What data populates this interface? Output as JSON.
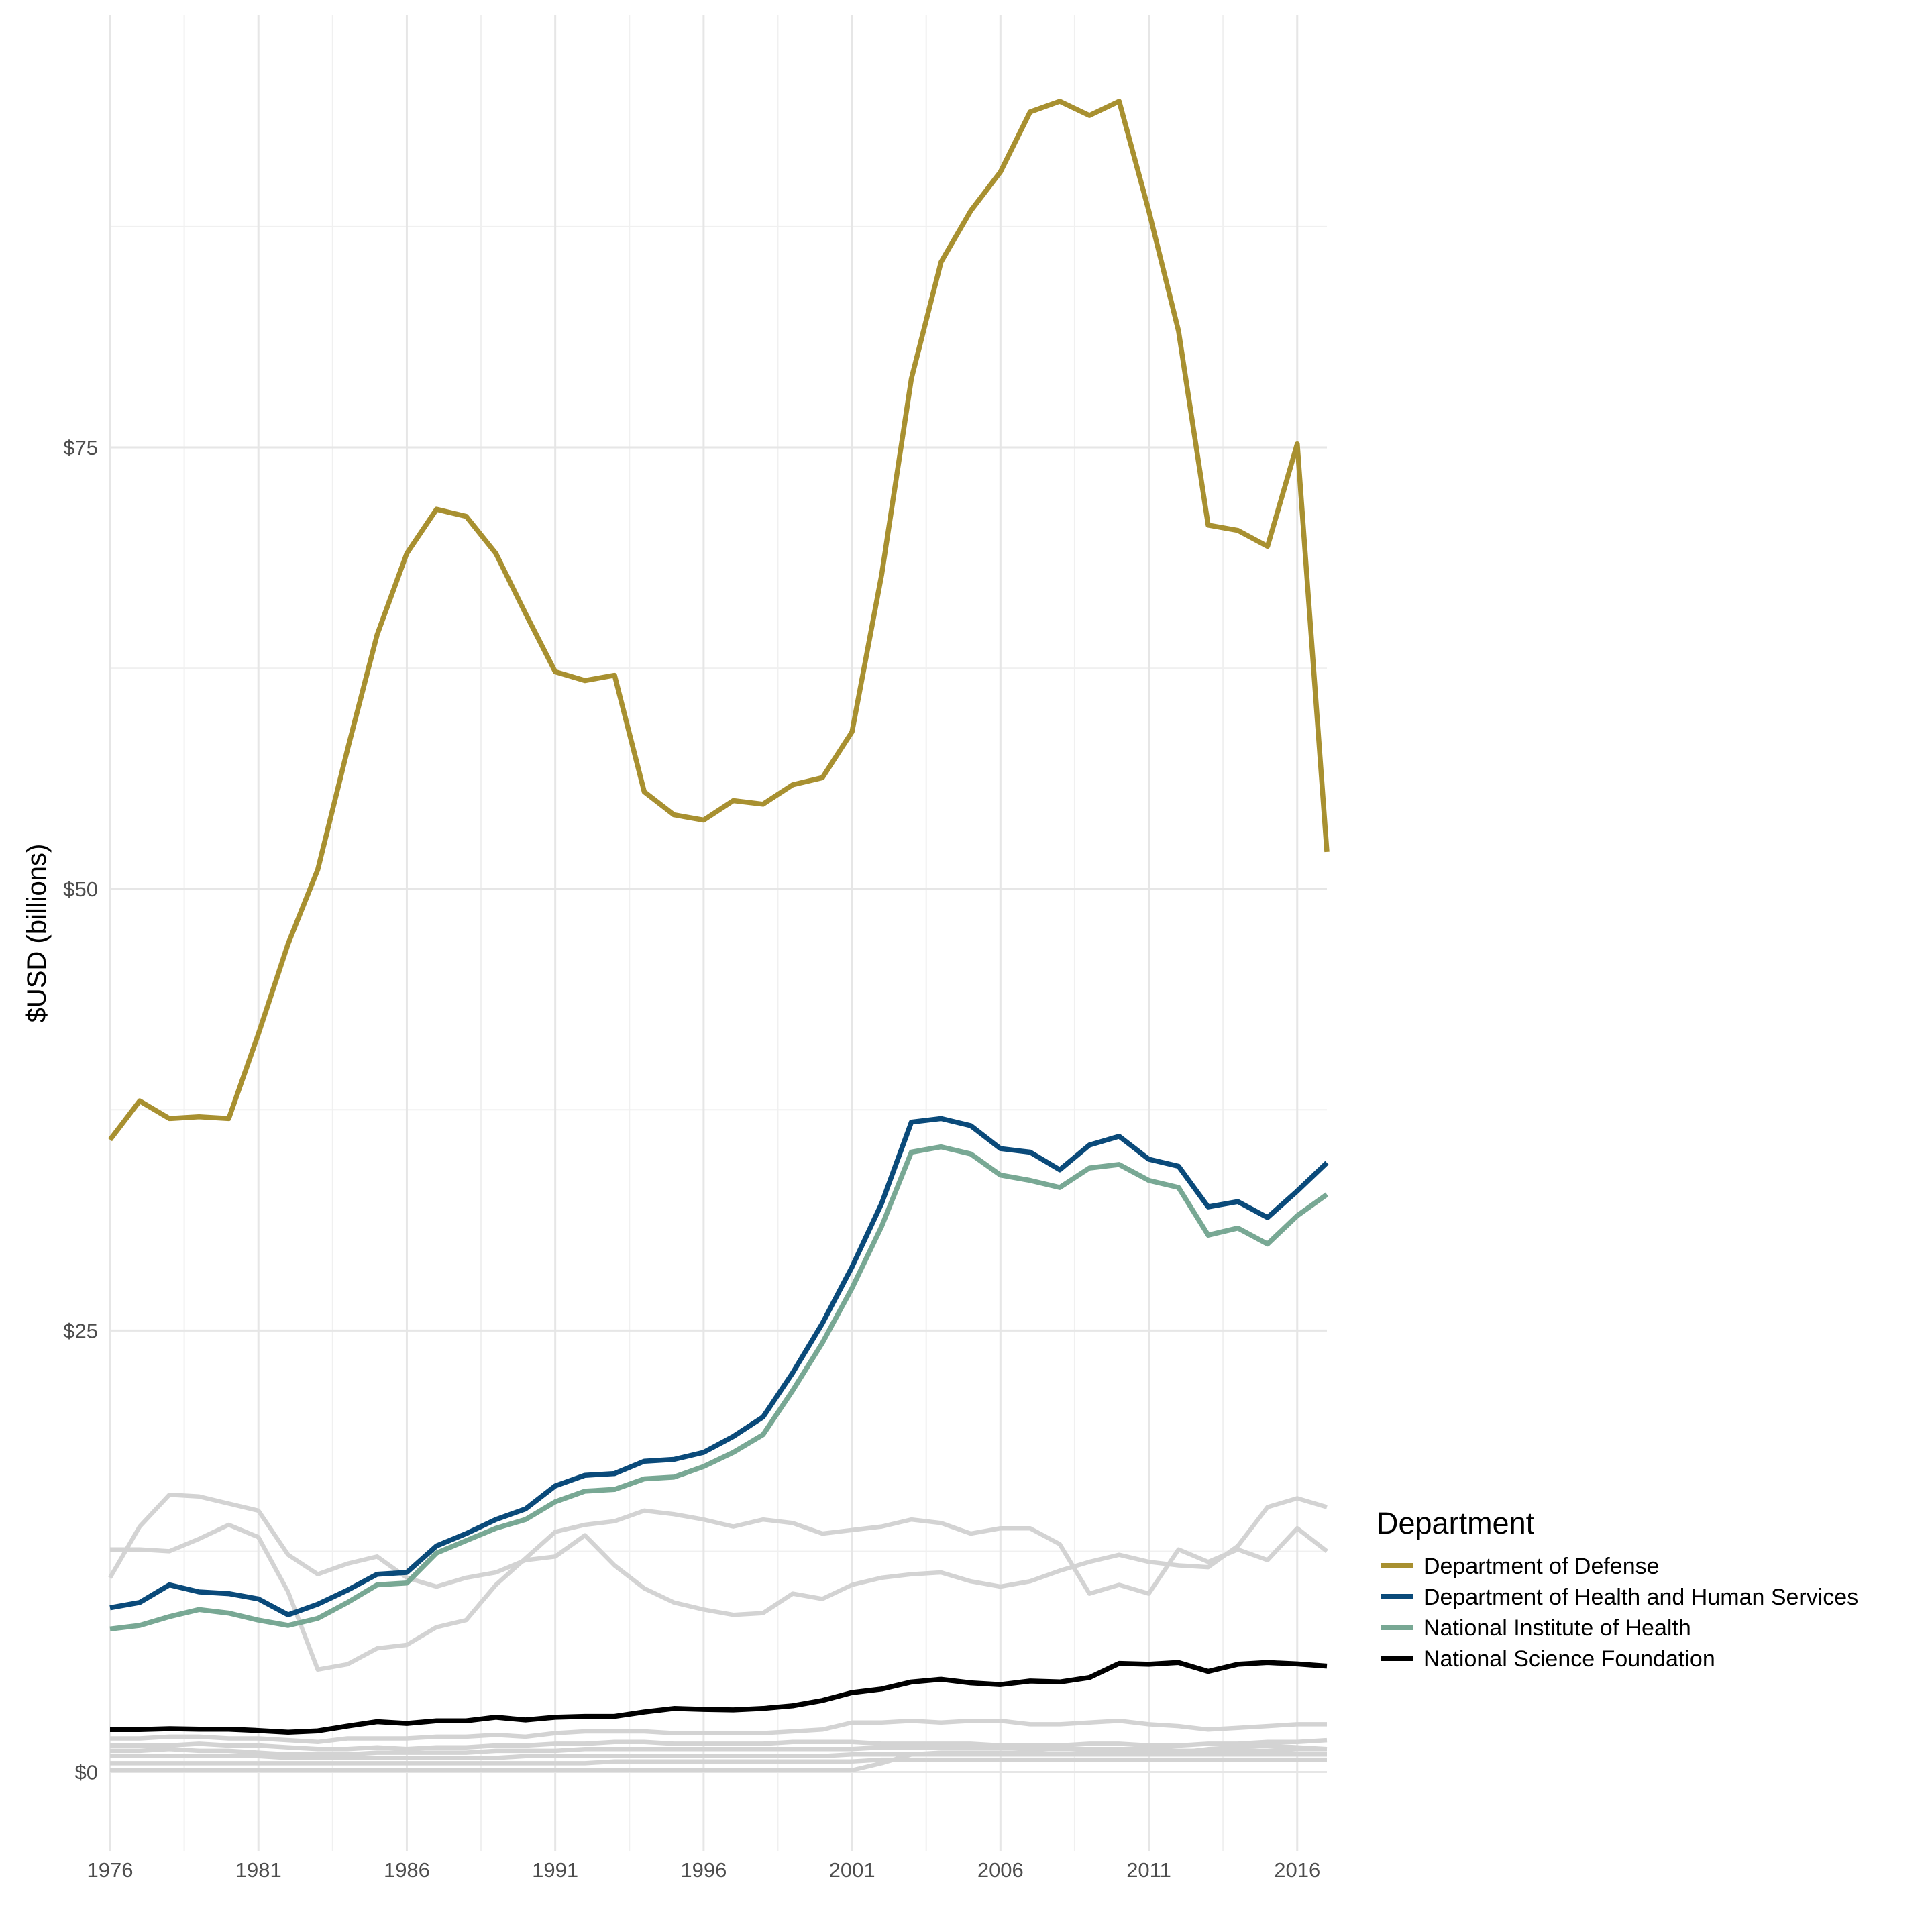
{
  "chart_data": {
    "type": "line",
    "title": "",
    "xlabel": "",
    "ylabel": "$USD (billions)",
    "xlim": [
      1976,
      2017
    ],
    "ylim": [
      -4.5,
      99.5
    ],
    "x_ticks": [
      1976,
      1981,
      1986,
      1991,
      1996,
      2001,
      2006,
      2011,
      2016
    ],
    "x_tick_labels": [
      "1976",
      "1981",
      "1986",
      "1991",
      "1996",
      "2001",
      "2006",
      "2011",
      "2016"
    ],
    "y_ticks": [
      0,
      25,
      50,
      75
    ],
    "y_tick_labels": [
      "$0",
      "$25",
      "$50",
      "$75"
    ],
    "grid": true,
    "legend": {
      "title": "Department",
      "position": "right"
    },
    "highlight_series": [
      {
        "name": "Department of Defense",
        "color": "#A89030",
        "x": [
          1976,
          1977,
          1978,
          1979,
          1980,
          1981,
          1982,
          1983,
          1984,
          1985,
          1986,
          1987,
          1988,
          1989,
          1990,
          1991,
          1992,
          1993,
          1994,
          1995,
          1996,
          1997,
          1998,
          1999,
          2000,
          2001,
          2002,
          2003,
          2004,
          2005,
          2006,
          2007,
          2008,
          2009,
          2010,
          2011,
          2012,
          2013,
          2014,
          2015,
          2016,
          2017
        ],
        "y": [
          35.8,
          38.0,
          37.0,
          37.1,
          37.0,
          41.8,
          46.9,
          51.1,
          57.9,
          64.4,
          69.0,
          71.5,
          71.1,
          69.0,
          65.6,
          62.3,
          61.8,
          62.1,
          55.5,
          54.2,
          53.9,
          55.0,
          54.8,
          55.9,
          56.3,
          58.9,
          67.8,
          78.9,
          85.5,
          88.4,
          90.6,
          94.0,
          94.6,
          93.8,
          94.6,
          88.4,
          81.6,
          70.6,
          70.3,
          69.4,
          75.2,
          52.1
        ]
      },
      {
        "name": "Department of Health and Human Services",
        "color": "#0A4A7A",
        "x": [
          1976,
          1977,
          1978,
          1979,
          1980,
          1981,
          1982,
          1983,
          1984,
          1985,
          1986,
          1987,
          1988,
          1989,
          1990,
          1991,
          1992,
          1993,
          1994,
          1995,
          1996,
          1997,
          1998,
          1999,
          2000,
          2001,
          2002,
          2003,
          2004,
          2005,
          2006,
          2007,
          2008,
          2009,
          2010,
          2011,
          2012,
          2013,
          2014,
          2015,
          2016,
          2017
        ],
        "y": [
          9.3,
          9.6,
          10.6,
          10.2,
          10.1,
          9.8,
          8.9,
          9.5,
          10.3,
          11.2,
          11.3,
          12.8,
          13.5,
          14.3,
          14.9,
          16.2,
          16.8,
          16.9,
          17.6,
          17.7,
          18.1,
          19.0,
          20.1,
          22.6,
          25.4,
          28.6,
          32.2,
          36.8,
          37.0,
          36.6,
          35.3,
          35.1,
          34.1,
          35.5,
          36.0,
          34.7,
          34.3,
          32.0,
          32.3,
          31.4,
          32.9,
          34.5
        ]
      },
      {
        "name": "National Institute of Health",
        "color": "#78A894",
        "x": [
          1976,
          1977,
          1978,
          1979,
          1980,
          1981,
          1982,
          1983,
          1984,
          1985,
          1986,
          1987,
          1988,
          1989,
          1990,
          1991,
          1992,
          1993,
          1994,
          1995,
          1996,
          1997,
          1998,
          1999,
          2000,
          2001,
          2002,
          2003,
          2004,
          2005,
          2006,
          2007,
          2008,
          2009,
          2010,
          2011,
          2012,
          2013,
          2014,
          2015,
          2016,
          2017
        ],
        "y": [
          8.1,
          8.3,
          8.8,
          9.2,
          9.0,
          8.6,
          8.3,
          8.7,
          9.6,
          10.6,
          10.7,
          12.4,
          13.1,
          13.8,
          14.3,
          15.3,
          15.9,
          16.0,
          16.6,
          16.7,
          17.3,
          18.1,
          19.1,
          21.6,
          24.3,
          27.4,
          30.9,
          35.1,
          35.4,
          35.0,
          33.8,
          33.5,
          33.1,
          34.2,
          34.4,
          33.5,
          33.1,
          30.4,
          30.8,
          29.9,
          31.5,
          32.7
        ]
      },
      {
        "name": "National Science Foundation",
        "color": "#000000",
        "x": [
          1976,
          1977,
          1978,
          1979,
          1980,
          1981,
          1982,
          1983,
          1984,
          1985,
          1986,
          1987,
          1988,
          1989,
          1990,
          1991,
          1992,
          1993,
          1994,
          1995,
          1996,
          1997,
          1998,
          1999,
          2000,
          2001,
          2002,
          2003,
          2004,
          2005,
          2006,
          2007,
          2008,
          2009,
          2010,
          2011,
          2012,
          2013,
          2014,
          2015,
          2016,
          2017
        ],
        "y": [
          2.4,
          2.4,
          2.45,
          2.42,
          2.42,
          2.35,
          2.25,
          2.33,
          2.6,
          2.85,
          2.75,
          2.9,
          2.9,
          3.1,
          2.95,
          3.1,
          3.15,
          3.15,
          3.4,
          3.6,
          3.55,
          3.52,
          3.6,
          3.75,
          4.05,
          4.5,
          4.7,
          5.1,
          5.25,
          5.05,
          4.95,
          5.15,
          5.1,
          5.35,
          6.15,
          6.1,
          6.2,
          5.7,
          6.1,
          6.2,
          6.12,
          6.0
        ]
      }
    ],
    "background_series": [
      {
        "name": "",
        "color": "#D3D3D3",
        "x": [
          1976,
          1977,
          1978,
          1979,
          1980,
          1981,
          1982,
          1983,
          1984,
          1985,
          1986,
          1987,
          1988,
          1989,
          1990,
          1991,
          1992,
          1993,
          1994,
          1995,
          1996,
          1997,
          1998,
          1999,
          2000,
          2001,
          2002,
          2003,
          2004,
          2005,
          2006,
          2007,
          2008,
          2009,
          2010,
          2011,
          2012,
          2013,
          2014,
          2015,
          2016,
          2017
        ],
        "y": [
          11.0,
          13.9,
          15.7,
          15.6,
          15.2,
          14.8,
          12.3,
          11.2,
          11.8,
          12.2,
          11.0,
          10.5,
          11.0,
          11.3,
          12.0,
          12.2,
          13.4,
          11.7,
          10.4,
          9.6,
          9.2,
          8.9,
          9.0,
          10.1,
          9.8,
          10.6,
          11.0,
          11.2,
          11.3,
          10.8,
          10.5,
          10.8,
          11.4,
          11.9,
          12.3,
          11.9,
          11.7,
          11.6,
          12.8,
          15.0,
          15.5,
          15.0
        ]
      },
      {
        "name": "",
        "color": "#D3D3D3",
        "x": [
          1976,
          1977,
          1978,
          1979,
          1980,
          1981,
          1982,
          1983,
          1984,
          1985,
          1986,
          1987,
          1988,
          1989,
          1990,
          1991,
          1992,
          1993,
          1994,
          1995,
          1996,
          1997,
          1998,
          1999,
          2000,
          2001,
          2002,
          2003,
          2004,
          2005,
          2006,
          2007,
          2008,
          2009,
          2010,
          2011,
          2012,
          2013,
          2014,
          2015,
          2016,
          2017
        ],
        "y": [
          12.6,
          12.6,
          12.5,
          13.2,
          14.0,
          13.3,
          10.2,
          5.8,
          6.1,
          7.0,
          7.2,
          8.2,
          8.6,
          10.6,
          12.1,
          13.6,
          14.0,
          14.2,
          14.8,
          14.6,
          14.3,
          13.9,
          14.3,
          14.1,
          13.5,
          13.7,
          13.9,
          14.3,
          14.1,
          13.5,
          13.8,
          13.8,
          12.9,
          10.1,
          10.6,
          10.1,
          12.6,
          11.9,
          12.6,
          12.0,
          13.8,
          12.5
        ]
      },
      {
        "name": "",
        "color": "#D3D3D3",
        "x": [
          1976,
          1977,
          1978,
          1979,
          1980,
          1981,
          1982,
          1983,
          1984,
          1985,
          1986,
          1987,
          1988,
          1989,
          1990,
          1991,
          1992,
          1993,
          1994,
          1995,
          1996,
          1997,
          1998,
          1999,
          2000,
          2001,
          2002,
          2003,
          2004,
          2005,
          2006,
          2007,
          2008,
          2009,
          2010,
          2011,
          2012,
          2013,
          2014,
          2015,
          2016,
          2017
        ],
        "y": [
          1.9,
          1.9,
          2.0,
          2.0,
          1.9,
          1.9,
          1.8,
          1.7,
          1.9,
          1.9,
          1.9,
          2.0,
          2.0,
          2.1,
          2.0,
          2.2,
          2.3,
          2.3,
          2.3,
          2.2,
          2.2,
          2.2,
          2.2,
          2.3,
          2.4,
          2.8,
          2.8,
          2.9,
          2.8,
          2.9,
          2.9,
          2.7,
          2.7,
          2.8,
          2.9,
          2.7,
          2.6,
          2.4,
          2.5,
          2.6,
          2.7,
          2.7
        ]
      },
      {
        "name": "",
        "color": "#D3D3D3",
        "x": [
          1976,
          1977,
          1978,
          1979,
          1980,
          1981,
          1982,
          1983,
          1984,
          1985,
          1986,
          1987,
          1988,
          1989,
          1990,
          1991,
          1992,
          1993,
          1994,
          1995,
          1996,
          1997,
          1998,
          1999,
          2000,
          2001,
          2002,
          2003,
          2004,
          2005,
          2006,
          2007,
          2008,
          2009,
          2010,
          2011,
          2012,
          2013,
          2014,
          2015,
          2016,
          2017
        ],
        "y": [
          1.5,
          1.5,
          1.5,
          1.6,
          1.5,
          1.5,
          1.4,
          1.3,
          1.3,
          1.4,
          1.3,
          1.4,
          1.4,
          1.5,
          1.5,
          1.6,
          1.6,
          1.7,
          1.7,
          1.6,
          1.6,
          1.6,
          1.6,
          1.7,
          1.7,
          1.7,
          1.6,
          1.6,
          1.6,
          1.6,
          1.5,
          1.5,
          1.5,
          1.6,
          1.6,
          1.5,
          1.5,
          1.6,
          1.6,
          1.7,
          1.7,
          1.8
        ]
      },
      {
        "name": "",
        "color": "#D3D3D3",
        "x": [
          1976,
          1977,
          1978,
          1979,
          1980,
          1981,
          1982,
          1983,
          1984,
          1985,
          1986,
          1987,
          1988,
          1989,
          1990,
          1991,
          1992,
          1993,
          1994,
          1995,
          1996,
          1997,
          1998,
          1999,
          2000,
          2001,
          2002,
          2003,
          2004,
          2005,
          2006,
          2007,
          2008,
          2009,
          2010,
          2011,
          2012,
          2013,
          2014,
          2015,
          2016,
          2017
        ],
        "y": [
          1.2,
          1.2,
          1.3,
          1.2,
          1.2,
          1.1,
          1.0,
          1.0,
          1.0,
          1.1,
          1.1,
          1.1,
          1.1,
          1.2,
          1.2,
          1.2,
          1.3,
          1.3,
          1.3,
          1.3,
          1.3,
          1.3,
          1.3,
          1.3,
          1.3,
          1.3,
          1.4,
          1.4,
          1.4,
          1.4,
          1.4,
          1.3,
          1.3,
          1.3,
          1.3,
          1.3,
          1.2,
          1.2,
          1.2,
          1.2,
          1.3,
          1.3
        ]
      },
      {
        "name": "",
        "color": "#D3D3D3",
        "x": [
          1976,
          1977,
          1978,
          1979,
          1980,
          1981,
          1982,
          1983,
          1984,
          1985,
          1986,
          1987,
          1988,
          1989,
          1990,
          1991,
          1992,
          1993,
          1994,
          1995,
          1996,
          1997,
          1998,
          1999,
          2000,
          2001,
          2002,
          2003,
          2004,
          2005,
          2006,
          2007,
          2008,
          2009,
          2010,
          2011,
          2012,
          2013,
          2014,
          2015,
          2016,
          2017
        ],
        "y": [
          0.9,
          0.9,
          0.9,
          0.9,
          0.9,
          0.9,
          0.8,
          0.8,
          0.8,
          0.8,
          0.8,
          0.8,
          0.8,
          0.8,
          0.9,
          0.9,
          0.9,
          0.9,
          0.9,
          0.9,
          0.9,
          0.9,
          0.9,
          0.9,
          0.9,
          1.0,
          1.0,
          1.0,
          1.0,
          1.0,
          1.0,
          1.0,
          1.0,
          1.0,
          1.0,
          1.0,
          1.0,
          1.0,
          1.0,
          1.0,
          1.0,
          1.0
        ]
      },
      {
        "name": "",
        "color": "#D3D3D3",
        "x": [
          1976,
          1977,
          1978,
          1979,
          1980,
          1981,
          1982,
          1983,
          1984,
          1985,
          1986,
          1987,
          1988,
          1989,
          1990,
          1991,
          1992,
          1993,
          1994,
          1995,
          1996,
          1997,
          1998,
          1999,
          2000,
          2001,
          2002,
          2003,
          2004,
          2005,
          2006,
          2007,
          2008,
          2009,
          2010,
          2011,
          2012,
          2013,
          2014,
          2015,
          2016,
          2017
        ],
        "y": [
          0.5,
          0.5,
          0.5,
          0.5,
          0.5,
          0.5,
          0.5,
          0.5,
          0.5,
          0.5,
          0.5,
          0.5,
          0.5,
          0.5,
          0.5,
          0.5,
          0.5,
          0.6,
          0.6,
          0.6,
          0.6,
          0.6,
          0.6,
          0.6,
          0.6,
          0.6,
          0.7,
          0.7,
          0.7,
          0.7,
          0.7,
          0.7,
          0.7,
          0.7,
          0.7,
          0.7,
          0.7,
          0.7,
          0.7,
          0.7,
          0.7,
          0.7
        ]
      },
      {
        "name": "",
        "color": "#D3D3D3",
        "x": [
          1976,
          1977,
          1978,
          1979,
          1980,
          1981,
          1982,
          1983,
          1984,
          1985,
          1986,
          1987,
          1988,
          1989,
          1990,
          1991,
          1992,
          1993,
          1994,
          1995,
          1996,
          1997,
          1998,
          1999,
          2000,
          2001,
          2002,
          2003,
          2004,
          2005,
          2006,
          2007,
          2008,
          2009,
          2010,
          2011,
          2012,
          2013,
          2014,
          2015,
          2016,
          2017
        ],
        "y": [
          0.1,
          0.1,
          0.1,
          0.1,
          0.1,
          0.1,
          0.1,
          0.1,
          0.1,
          0.1,
          0.1,
          0.1,
          0.1,
          0.1,
          0.1,
          0.1,
          0.1,
          0.1,
          0.1,
          0.1,
          0.1,
          0.1,
          0.1,
          0.1,
          0.1,
          0.1,
          0.5,
          1.0,
          1.1,
          1.1,
          1.1,
          1.1,
          1.0,
          1.1,
          1.2,
          1.2,
          1.1,
          1.3,
          1.4,
          1.5,
          1.4,
          1.3
        ]
      }
    ]
  }
}
